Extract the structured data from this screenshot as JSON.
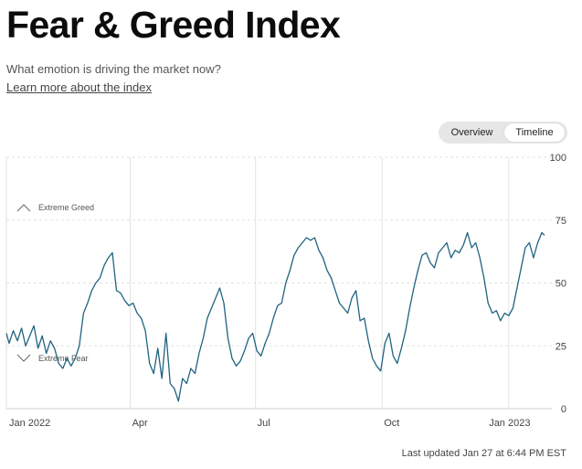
{
  "header": {
    "title": "Fear & Greed Index",
    "subtitle": "What emotion is driving the market now?",
    "learn_more": "Learn more about the index"
  },
  "toggle": {
    "overview_label": "Overview",
    "timeline_label": "Timeline",
    "active": "timeline"
  },
  "footer": {
    "last_updated": "Last updated Jan 27 at 6:44 PM EST"
  },
  "colors": {
    "line": "#1f6380",
    "grid": "#e2e2e2",
    "text": "#444444"
  },
  "chart_data": {
    "type": "line",
    "title": "",
    "xlabel": "",
    "ylabel": "",
    "ylim": [
      0,
      100
    ],
    "yticks": [
      0,
      25,
      50,
      75,
      100
    ],
    "xlim": [
      "2022-01-01",
      "2023-01-27"
    ],
    "xticks": [
      {
        "date": "2022-01-01",
        "label": "Jan 2022"
      },
      {
        "date": "2022-04-01",
        "label": "Apr"
      },
      {
        "date": "2022-07-01",
        "label": "Jul"
      },
      {
        "date": "2022-10-01",
        "label": "Oct"
      },
      {
        "date": "2023-01-01",
        "label": "Jan 2023"
      }
    ],
    "grid": true,
    "annotations": [
      {
        "label": "Extreme Greed",
        "value": 80,
        "marker": "up-caret"
      },
      {
        "label": "Extreme Fear",
        "value": 20,
        "marker": "down-caret"
      }
    ],
    "series": [
      {
        "points": [
          [
            "2022-01-01",
            30
          ],
          [
            "2022-01-03",
            26
          ],
          [
            "2022-01-06",
            31
          ],
          [
            "2022-01-09",
            27
          ],
          [
            "2022-01-12",
            32
          ],
          [
            "2022-01-15",
            25
          ],
          [
            "2022-01-18",
            29
          ],
          [
            "2022-01-21",
            33
          ],
          [
            "2022-01-24",
            24
          ],
          [
            "2022-01-27",
            29
          ],
          [
            "2022-01-30",
            22
          ],
          [
            "2022-02-02",
            27
          ],
          [
            "2022-02-05",
            24
          ],
          [
            "2022-02-08",
            18
          ],
          [
            "2022-02-11",
            16
          ],
          [
            "2022-02-14",
            20
          ],
          [
            "2022-02-17",
            17
          ],
          [
            "2022-02-20",
            20
          ],
          [
            "2022-02-23",
            25
          ],
          [
            "2022-02-26",
            38
          ],
          [
            "2022-03-01",
            42
          ],
          [
            "2022-03-04",
            47
          ],
          [
            "2022-03-07",
            50
          ],
          [
            "2022-03-10",
            52
          ],
          [
            "2022-03-13",
            57
          ],
          [
            "2022-03-16",
            60
          ],
          [
            "2022-03-19",
            62
          ],
          [
            "2022-03-22",
            47
          ],
          [
            "2022-03-25",
            46
          ],
          [
            "2022-03-28",
            43
          ],
          [
            "2022-03-31",
            41
          ],
          [
            "2022-04-03",
            42
          ],
          [
            "2022-04-06",
            38
          ],
          [
            "2022-04-09",
            36
          ],
          [
            "2022-04-12",
            31
          ],
          [
            "2022-04-15",
            18
          ],
          [
            "2022-04-18",
            14
          ],
          [
            "2022-04-21",
            24
          ],
          [
            "2022-04-24",
            12
          ],
          [
            "2022-04-27",
            30
          ],
          [
            "2022-04-30",
            10
          ],
          [
            "2022-05-03",
            8
          ],
          [
            "2022-05-06",
            3
          ],
          [
            "2022-05-09",
            12
          ],
          [
            "2022-05-12",
            10
          ],
          [
            "2022-05-15",
            16
          ],
          [
            "2022-05-18",
            14
          ],
          [
            "2022-05-21",
            22
          ],
          [
            "2022-05-24",
            28
          ],
          [
            "2022-05-27",
            36
          ],
          [
            "2022-05-30",
            40
          ],
          [
            "2022-06-02",
            44
          ],
          [
            "2022-06-05",
            48
          ],
          [
            "2022-06-08",
            42
          ],
          [
            "2022-06-11",
            28
          ],
          [
            "2022-06-14",
            20
          ],
          [
            "2022-06-17",
            17
          ],
          [
            "2022-06-20",
            19
          ],
          [
            "2022-06-23",
            23
          ],
          [
            "2022-06-26",
            28
          ],
          [
            "2022-06-29",
            30
          ],
          [
            "2022-07-02",
            23
          ],
          [
            "2022-07-05",
            21
          ],
          [
            "2022-07-08",
            26
          ],
          [
            "2022-07-11",
            30
          ],
          [
            "2022-07-14",
            36
          ],
          [
            "2022-07-17",
            41
          ],
          [
            "2022-07-20",
            42
          ],
          [
            "2022-07-23",
            50
          ],
          [
            "2022-07-26",
            55
          ],
          [
            "2022-07-29",
            61
          ],
          [
            "2022-08-01",
            64
          ],
          [
            "2022-08-04",
            66
          ],
          [
            "2022-08-07",
            68
          ],
          [
            "2022-08-10",
            67
          ],
          [
            "2022-08-13",
            68
          ],
          [
            "2022-08-16",
            63
          ],
          [
            "2022-08-19",
            60
          ],
          [
            "2022-08-22",
            55
          ],
          [
            "2022-08-25",
            52
          ],
          [
            "2022-08-28",
            47
          ],
          [
            "2022-08-31",
            42
          ],
          [
            "2022-09-03",
            40
          ],
          [
            "2022-09-06",
            38
          ],
          [
            "2022-09-09",
            44
          ],
          [
            "2022-09-12",
            47
          ],
          [
            "2022-09-15",
            35
          ],
          [
            "2022-09-18",
            36
          ],
          [
            "2022-09-21",
            27
          ],
          [
            "2022-09-24",
            20
          ],
          [
            "2022-09-27",
            17
          ],
          [
            "2022-09-30",
            15
          ],
          [
            "2022-10-03",
            26
          ],
          [
            "2022-10-06",
            30
          ],
          [
            "2022-10-09",
            21
          ],
          [
            "2022-10-12",
            18
          ],
          [
            "2022-10-15",
            24
          ],
          [
            "2022-10-18",
            31
          ],
          [
            "2022-10-21",
            40
          ],
          [
            "2022-10-24",
            48
          ],
          [
            "2022-10-27",
            55
          ],
          [
            "2022-10-30",
            61
          ],
          [
            "2022-11-02",
            62
          ],
          [
            "2022-11-05",
            58
          ],
          [
            "2022-11-08",
            56
          ],
          [
            "2022-11-11",
            62
          ],
          [
            "2022-11-14",
            64
          ],
          [
            "2022-11-17",
            66
          ],
          [
            "2022-11-20",
            60
          ],
          [
            "2022-11-23",
            63
          ],
          [
            "2022-11-26",
            62
          ],
          [
            "2022-11-29",
            65
          ],
          [
            "2022-12-02",
            70
          ],
          [
            "2022-12-05",
            64
          ],
          [
            "2022-12-08",
            66
          ],
          [
            "2022-12-11",
            60
          ],
          [
            "2022-12-14",
            52
          ],
          [
            "2022-12-17",
            42
          ],
          [
            "2022-12-20",
            38
          ],
          [
            "2022-12-23",
            39
          ],
          [
            "2022-12-26",
            35
          ],
          [
            "2022-12-29",
            38
          ],
          [
            "2023-01-01",
            37
          ],
          [
            "2023-01-04",
            40
          ],
          [
            "2023-01-07",
            48
          ],
          [
            "2023-01-10",
            56
          ],
          [
            "2023-01-13",
            64
          ],
          [
            "2023-01-16",
            66
          ],
          [
            "2023-01-19",
            60
          ],
          [
            "2023-01-22",
            66
          ],
          [
            "2023-01-25",
            70
          ],
          [
            "2023-01-27",
            69
          ]
        ]
      }
    ]
  }
}
